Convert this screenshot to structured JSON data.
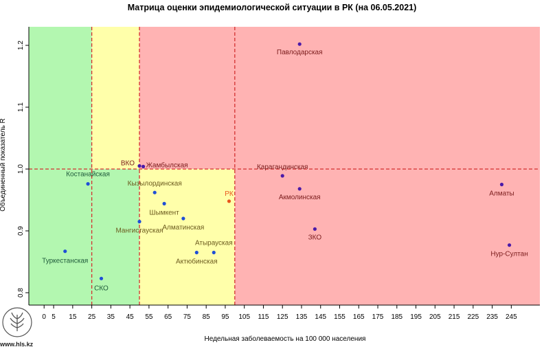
{
  "chart_data": {
    "type": "scatter",
    "title": "Матрица оценки эпидемиологической ситуации в РК (на 06.05.2021)",
    "xlabel": "Недельная заболеваемость на 100 000 населения",
    "ylabel": "Объединенный показатель R",
    "xlim": [
      -8,
      260
    ],
    "ylim": [
      0.78,
      1.23
    ],
    "xticks": [
      0,
      5,
      15,
      25,
      35,
      45,
      55,
      65,
      75,
      85,
      95,
      105,
      115,
      125,
      135,
      145,
      155,
      165,
      175,
      185,
      195,
      205,
      215,
      225,
      235,
      245
    ],
    "yticks": [
      0.8,
      0.9,
      1.0,
      1.1,
      1.2
    ],
    "zones": [
      {
        "name": "green",
        "color": "#b3f7b0",
        "x": [
          -8,
          50
        ],
        "y": [
          0.78,
          1.23
        ]
      },
      {
        "name": "yellow-top",
        "color": "#ffffaa",
        "x": [
          25,
          50
        ],
        "y": [
          1.0,
          1.23
        ]
      },
      {
        "name": "yellow-bottom",
        "color": "#ffffaa",
        "x": [
          50,
          100
        ],
        "y": [
          0.78,
          1.0
        ]
      },
      {
        "name": "red-top",
        "color": "#ffb3b3",
        "x": [
          50,
          260
        ],
        "y": [
          1.0,
          1.23
        ]
      },
      {
        "name": "red-bottom",
        "color": "#ffb3b3",
        "x": [
          100,
          260
        ],
        "y": [
          0.78,
          1.0
        ]
      }
    ],
    "vlines": [
      25,
      50,
      100
    ],
    "hline": 1.0,
    "points": [
      {
        "label": "Павлодарская",
        "x": 134,
        "y": 1.202,
        "color": "#4b1aa8",
        "label_color": "#7a1c1c",
        "anchor": "middle",
        "dx": 0,
        "dy": 15
      },
      {
        "label": "Карагандинская",
        "x": 125,
        "y": 0.989,
        "color": "#4b1aa8",
        "label_color": "#7a1c1c",
        "anchor": "middle",
        "dx": 0,
        "dy": -10
      },
      {
        "label": "Акмолинская",
        "x": 134,
        "y": 0.968,
        "color": "#4b1aa8",
        "label_color": "#7a1c1c",
        "anchor": "middle",
        "dx": 0,
        "dy": 15
      },
      {
        "label": "ЗКО",
        "x": 142,
        "y": 0.903,
        "color": "#4b1aa8",
        "label_color": "#7a1c1c",
        "anchor": "middle",
        "dx": 0,
        "dy": 15
      },
      {
        "label": "Алматы",
        "x": 240,
        "y": 0.975,
        "color": "#4b1aa8",
        "label_color": "#7a1c1c",
        "anchor": "middle",
        "dx": 0,
        "dy": 16
      },
      {
        "label": "Нур-Султан",
        "x": 244,
        "y": 0.877,
        "color": "#4b1aa8",
        "label_color": "#7a1c1c",
        "anchor": "middle",
        "dx": 0,
        "dy": 16
      },
      {
        "label": "ВКО",
        "x": 50,
        "y": 1.005,
        "color": "#4b1aa8",
        "label_color": "#7a1c1c",
        "anchor": "end",
        "dx": -7,
        "dy": -1
      },
      {
        "label": "Жамбылская",
        "x": 52,
        "y": 1.004,
        "color": "#4b1aa8",
        "label_color": "#7a1c1c",
        "anchor": "start",
        "dx": 4,
        "dy": 1
      },
      {
        "label": "Кызылординская",
        "x": 58,
        "y": 0.962,
        "color": "#1f4fd6",
        "label_color": "#6b5a1e",
        "anchor": "middle",
        "dx": 0,
        "dy": -10
      },
      {
        "label": "Шымкент",
        "x": 63,
        "y": 0.944,
        "color": "#1f4fd6",
        "label_color": "#6b5a1e",
        "anchor": "middle",
        "dx": 0,
        "dy": 16
      },
      {
        "label": "Алматинская",
        "x": 73,
        "y": 0.92,
        "color": "#1f4fd6",
        "label_color": "#6b5a1e",
        "anchor": "middle",
        "dx": 0,
        "dy": 16
      },
      {
        "label": "Атырауская",
        "x": 89,
        "y": 0.865,
        "color": "#1f4fd6",
        "label_color": "#6b5a1e",
        "anchor": "middle",
        "dx": 0,
        "dy": -11
      },
      {
        "label": "Актюбинская",
        "x": 80,
        "y": 0.865,
        "color": "#1f4fd6",
        "label_color": "#6b5a1e",
        "anchor": "middle",
        "dx": 0,
        "dy": 16
      },
      {
        "label": "Мангистауская",
        "x": 50,
        "y": 0.915,
        "color": "#1f4fd6",
        "label_color": "#6b5a1e",
        "anchor": "middle",
        "dx": 0,
        "dy": 16
      },
      {
        "label": "РК",
        "x": 97,
        "y": 0.948,
        "color": "#e8551c",
        "label_color": "#e8551c",
        "anchor": "middle",
        "dx": 0,
        "dy": -8
      },
      {
        "label": "Костанайская",
        "x": 23,
        "y": 0.976,
        "color": "#1f4fd6",
        "label_color": "#1e5a3a",
        "anchor": "middle",
        "dx": 0,
        "dy": -11
      },
      {
        "label": "Туркестанская",
        "x": 11,
        "y": 0.867,
        "color": "#1f4fd6",
        "label_color": "#1e5a3a",
        "anchor": "middle",
        "dx": 0,
        "dy": 17
      },
      {
        "label": "СКО",
        "x": 30,
        "y": 0.823,
        "color": "#1f4fd6",
        "label_color": "#1e5a3a",
        "anchor": "middle",
        "dx": 0,
        "dy": 17
      }
    ]
  },
  "footer": {
    "site": "www.hls.kz"
  }
}
